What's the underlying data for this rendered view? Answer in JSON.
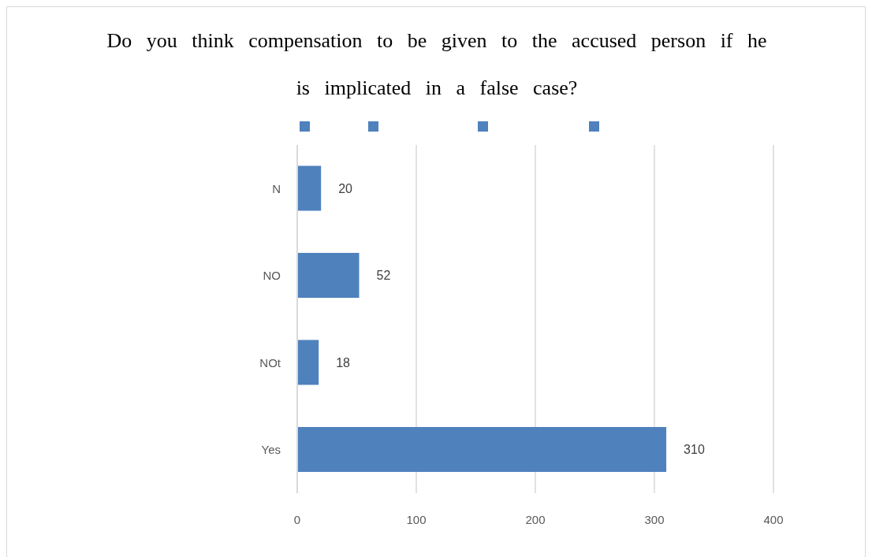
{
  "chart_data": {
    "type": "bar",
    "orientation": "horizontal",
    "title": "Do you think compensation to be given to the accused person if he is implicated in a false case?",
    "categories": [
      "N",
      "NO",
      "NOt",
      "Yes"
    ],
    "values": [
      20,
      52,
      18,
      310
    ],
    "color": "#4f81bd",
    "xlim": [
      0,
      400
    ],
    "xticks": [
      0,
      100,
      200,
      300,
      400
    ],
    "grid": "x",
    "data_labels": true
  }
}
